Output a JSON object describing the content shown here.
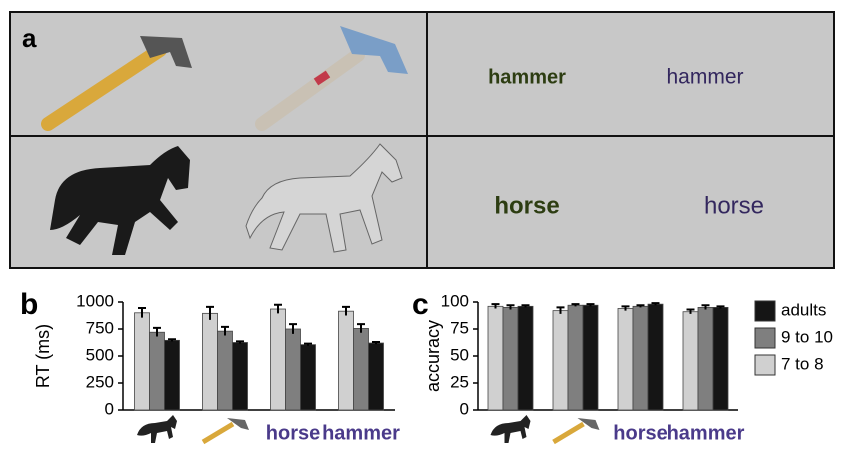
{
  "panel_a": {
    "label": "a",
    "words": [
      "hammer",
      "hammer",
      "horse",
      "horse"
    ]
  },
  "chart_data": [
    {
      "type": "bar",
      "label": "b",
      "y_label": "RT (ms)",
      "categories": [
        null,
        null,
        "horse",
        "hammer"
      ],
      "series": [
        {
          "color": "#d0d0d0",
          "values": [
            900,
            895,
            935,
            915
          ],
          "errors": [
            45,
            60,
            40,
            40
          ]
        },
        {
          "color": "#7f7f7f",
          "values": [
            720,
            730,
            750,
            755
          ],
          "errors": [
            40,
            40,
            45,
            40
          ]
        },
        {
          "color": "#151515",
          "values": [
            645,
            625,
            605,
            620
          ],
          "errors": [
            10,
            10,
            10,
            10
          ]
        }
      ],
      "ylim": [
        0,
        1000
      ],
      "yticks": [
        0,
        250,
        500,
        750,
        1000
      ]
    },
    {
      "type": "bar",
      "label": "c",
      "y_label": "accuracy",
      "categories": [
        null,
        null,
        "horse",
        "hammer"
      ],
      "series": [
        {
          "name": "7 to 8",
          "color": "#d0d0d0",
          "values": [
            96,
            92,
            94,
            91
          ],
          "errors": [
            2,
            3,
            2,
            2
          ]
        },
        {
          "name": "9 to 10",
          "color": "#7f7f7f",
          "values": [
            95,
            97,
            96,
            95
          ],
          "errors": [
            2,
            1,
            1,
            2
          ]
        },
        {
          "name": "adults",
          "color": "#151515",
          "values": [
            96,
            97,
            98,
            95
          ],
          "errors": [
            1,
            1,
            1,
            1
          ]
        }
      ],
      "ylim": [
        0,
        100
      ],
      "yticks": [
        0,
        25,
        50,
        75,
        100
      ],
      "legend": "right"
    }
  ]
}
